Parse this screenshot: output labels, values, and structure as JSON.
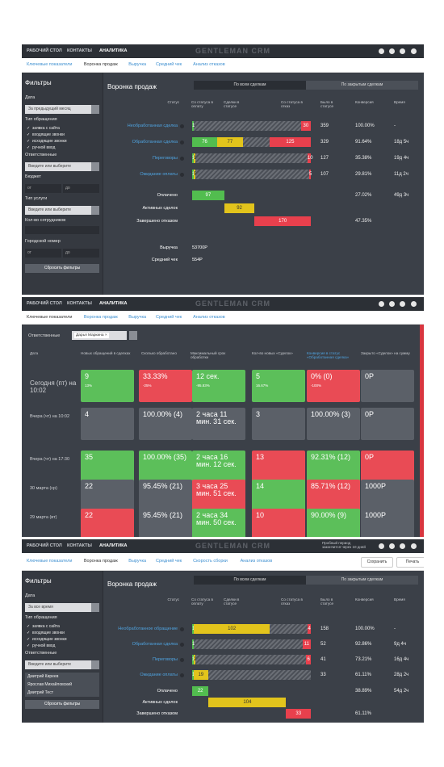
{
  "panels": [
    {
      "nav": [
        "РАБОЧИЙ СТОЛ",
        "КОНТАКТЫ",
        "АНАЛИТИКА"
      ],
      "logo": "GENTLEMAN CRM",
      "tabs": [
        "Ключевые показатели",
        "Воронка продаж",
        "Выручка",
        "Средний чек",
        "Анализ отказов"
      ],
      "active_tab": 1,
      "sidebar": {
        "items": [
          {
            "kind": "title",
            "text": "Фильтры"
          },
          {
            "kind": "label",
            "text": "Дата"
          },
          {
            "kind": "select",
            "text": "За предыдущий месяц"
          },
          {
            "kind": "label",
            "text": "Тип обращения"
          },
          {
            "kind": "check",
            "text": "заявка с сайта"
          },
          {
            "kind": "check",
            "text": "входящие звонки"
          },
          {
            "kind": "check",
            "text": "исходящие звонки"
          },
          {
            "kind": "check",
            "text": "ручной ввод"
          },
          {
            "kind": "label",
            "text": "Ответственные"
          },
          {
            "kind": "select",
            "text": "Введите или выберите"
          },
          {
            "kind": "label",
            "text": "Бюджет"
          },
          {
            "kind": "pair",
            "texts": [
              "от",
              "до"
            ]
          },
          {
            "kind": "label",
            "text": "Тип услуги"
          },
          {
            "kind": "select",
            "text": "Введите или выберите"
          },
          {
            "kind": "label",
            "text": "Кол-во сотрудников",
            "box_after": true
          },
          {
            "kind": "label",
            "text": "Городской номер"
          },
          {
            "kind": "pair",
            "texts": [
              "от",
              "до"
            ]
          },
          {
            "kind": "button",
            "text": "Сбросить фильтры"
          }
        ]
      },
      "funnel": {
        "title": "Воронка продаж",
        "toggles": [
          "По всем сделкам",
          "По закрытым сделкам"
        ],
        "active_toggle": 0,
        "headers": [
          "Статус",
          "Со статуса в оплату",
          "Сделки в статусе",
          "Со статуса в отказ",
          "Было в статусе",
          "Конверсия",
          "Время"
        ],
        "colors": {
          "to_payment": "#52bd4f",
          "in_status": "#e2c41c",
          "to_refusal": "#e8404d"
        },
        "rows": [
          {
            "status": "Необработанная сделка",
            "to_payment": 1,
            "to_refusal": 30,
            "was": 359,
            "conversion": "100.00%",
            "time": "-"
          },
          {
            "status": "Обработанная сделка",
            "to_payment": 76,
            "in_status": 77,
            "to_refusal": 125,
            "was": 329,
            "conversion": "91.64%",
            "time": "18д 5ч"
          },
          {
            "status": "Переговоры",
            "to_payment": 1,
            "in_status": 1,
            "to_refusal": 10,
            "was": 127,
            "conversion": "35.38%",
            "time": "19д 4ч"
          },
          {
            "status": "Ожидание оплаты",
            "to_payment": 1,
            "in_status": 5,
            "to_refusal": 5,
            "was": 107,
            "conversion": "29.81%",
            "time": "11д 2ч"
          }
        ],
        "summary": [
          {
            "label": "Оплачено",
            "value": 97,
            "color": "#52bd4f",
            "conversion": "27.02%",
            "time": "49д 3ч"
          },
          {
            "label": "Активных сделок",
            "value": 92,
            "color": "#e2c41c"
          },
          {
            "label": "Завершено отказом",
            "value": 170,
            "color": "#e8404d",
            "conversion": "47.35%"
          }
        ],
        "extras": [
          {
            "label": "Выручка",
            "value": "53700Р"
          },
          {
            "label": "Средний чек",
            "value": "554Р"
          }
        ]
      }
    },
    {
      "nav": [
        "РАБОЧИЙ СТОЛ",
        "КОНТАКТЫ",
        "АНАЛИТИКА"
      ],
      "logo": "GENTLEMAN CRM",
      "tabs": [
        "Ключевые показатели",
        "Воронка продаж",
        "Выручка",
        "Средний чек",
        "Анализ отказов"
      ],
      "active_tab": 0,
      "key_metrics": {
        "filter_label": "Ответственные",
        "chip": "Дарья Маркина ×",
        "headers": [
          "Дата",
          "Новых обращений в сделках",
          "Сколько обработано",
          "Максимальный срок обработки",
          "Кол-во новых «Сделок»",
          "Конверсия в статус «Обработанная сделка»",
          "Закрыто «Сделок» на сумму"
        ],
        "highlight_header": 5,
        "rows": [
          {
            "date": "Сегодня (пт) на 10:02",
            "cells": [
              {
                "main": "9",
                "sub": "13%",
                "color": "#5cbf5a"
              },
              {
                "main": "33.33%",
                "sub": "-25%",
                "color": "#e94b55"
              },
              {
                "main": "12 сек.",
                "sub": "-95.83%",
                "color": "#5cbf5a"
              },
              {
                "main": "5",
                "sub": "16.67%",
                "color": "#5cbf5a"
              },
              {
                "main": "0% (0)",
                "sub": "-100%",
                "color": "#e94b55"
              },
              {
                "main": "0Р",
                "color": "#5b6068"
              }
            ]
          },
          {
            "date": "Вчера (чт) на 10:02",
            "cells": [
              {
                "main": "4",
                "color": "#5b6068"
              },
              {
                "main": "100.00% (4)",
                "color": "#5b6068"
              },
              {
                "main": "2 часа 11 мин. 31 сек.",
                "color": "#5b6068"
              },
              {
                "main": "3",
                "color": "#5b6068"
              },
              {
                "main": "100.00% (3)",
                "color": "#5b6068"
              },
              {
                "main": "0Р",
                "color": "#5b6068"
              }
            ]
          },
          {
            "date": "Вчера (чт) на 17:30",
            "cells": [
              {
                "main": "35",
                "color": "#5cbf5a"
              },
              {
                "main": "100.00% (35)",
                "color": "#5cbf5a"
              },
              {
                "main": "2 часа 16 мин. 12 сек.",
                "color": "#5cbf5a"
              },
              {
                "main": "13",
                "color": "#e94b55"
              },
              {
                "main": "92.31% (12)",
                "color": "#5cbf5a"
              },
              {
                "main": "0Р",
                "color": "#e94b55"
              }
            ]
          },
          {
            "date": "30 марта (ср)",
            "cells": [
              {
                "main": "22",
                "color": "#5b6068"
              },
              {
                "main": "95.45% (21)",
                "color": "#5b6068"
              },
              {
                "main": "3 часа 25 мин. 51 сек.",
                "color": "#e94b55"
              },
              {
                "main": "14",
                "color": "#5cbf5a"
              },
              {
                "main": "85.71% (12)",
                "color": "#e94b55"
              },
              {
                "main": "1000Р",
                "color": "#5b6068"
              }
            ]
          },
          {
            "date": "29 марта (вт)",
            "cells": [
              {
                "main": "22",
                "color": "#e94b55"
              },
              {
                "main": "95.45% (21)",
                "color": "#5b6068"
              },
              {
                "main": "2 часа 34 мин. 50 сек.",
                "color": "#5cbf5a"
              },
              {
                "main": "10",
                "color": "#e94b55"
              },
              {
                "main": "90.00% (9)",
                "color": "#5cbf5a"
              },
              {
                "main": "1000Р",
                "color": "#5b6068"
              }
            ]
          }
        ]
      }
    },
    {
      "nav": [
        "РАБОЧИЙ СТОЛ",
        "КОНТАКТЫ",
        "АНАЛИТИКА"
      ],
      "logo": "GENTLEMAN CRM",
      "trial": "Пробный период закончится через 10 дней",
      "tabs": [
        "Ключевые показатели",
        "Воронка продаж",
        "Выручка",
        "Средний чек",
        "Скорость сборки",
        "Анализ отказов"
      ],
      "active_tab": 1,
      "buttons": [
        "Сохранить",
        "Печать"
      ],
      "sidebar": {
        "items": [
          {
            "kind": "title",
            "text": "Фильтры"
          },
          {
            "kind": "label",
            "text": "Дата"
          },
          {
            "kind": "select",
            "text": "За все время"
          },
          {
            "kind": "label",
            "text": "Тип обращения"
          },
          {
            "kind": "check",
            "text": "заявка с сайта"
          },
          {
            "kind": "check",
            "text": "входящие звонки"
          },
          {
            "kind": "check",
            "text": "исходящие звонки"
          },
          {
            "kind": "check",
            "text": "ручной ввод"
          },
          {
            "kind": "label",
            "text": "Ответственные"
          },
          {
            "kind": "select",
            "text": "Введите или выберите"
          },
          {
            "kind": "option",
            "text": "Дмитрий Киреев"
          },
          {
            "kind": "option",
            "text": "Ярослав Михайловский"
          },
          {
            "kind": "option",
            "text": "Дмитрий Тест"
          },
          {
            "kind": "button",
            "text": "Сбросить фильтры"
          }
        ]
      },
      "funnel": {
        "title": "Воронка продаж",
        "toggles": [
          "По всем сделкам",
          "По закрытым сделкам"
        ],
        "active_toggle": 0,
        "headers": [
          "Статус",
          "Со статуса в оплату",
          "Сделки в статусе",
          "Со статуса в отказ",
          "Было в статусе",
          "Конверсия",
          "Время"
        ],
        "colors": {
          "to_payment": "#52bd4f",
          "in_status": "#e2c41c",
          "to_refusal": "#e8404d"
        },
        "rows": [
          {
            "status": "Необработанное обращение",
            "to_payment": 1,
            "in_status": 102,
            "to_refusal": 4,
            "was": 158,
            "conversion": "100.00%",
            "time": "-"
          },
          {
            "status": "Обработанная сделка",
            "to_payment": 1,
            "to_refusal": 11,
            "was": 52,
            "conversion": "92.86%",
            "time": "9д 4ч"
          },
          {
            "status": "Переговоры",
            "to_payment": 1,
            "in_status": 2,
            "to_refusal": 6,
            "was": 41,
            "conversion": "73.21%",
            "time": "16д 4ч"
          },
          {
            "status": "Ожидание оплаты",
            "to_payment": 1,
            "in_status": 19,
            "was": 33,
            "conversion": "61.11%",
            "time": "28д 2ч"
          }
        ],
        "summary": [
          {
            "label": "Оплачено",
            "value": 22,
            "color": "#52bd4f",
            "conversion": "38.89%",
            "time": "54д 2ч"
          },
          {
            "label": "Активных сделок",
            "value": 104,
            "color": "#e2c41c"
          },
          {
            "label": "Завершено отказом",
            "value": 33,
            "color": "#e8404d",
            "conversion": "61.11%"
          }
        ]
      }
    }
  ]
}
